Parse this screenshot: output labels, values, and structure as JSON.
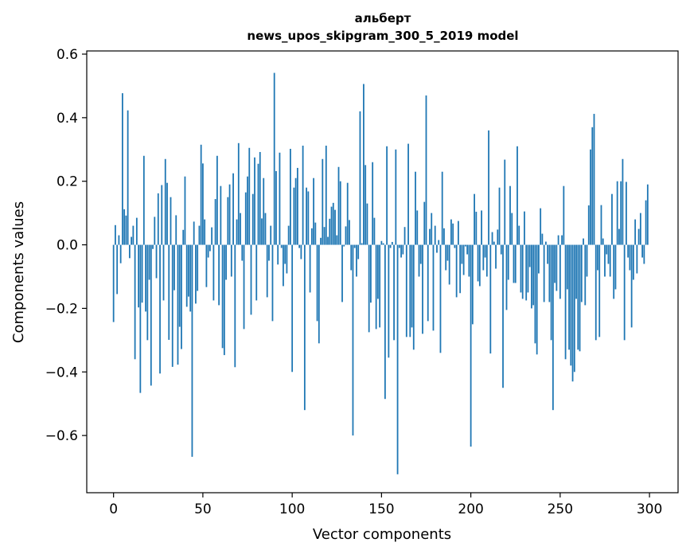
{
  "chart_data": {
    "type": "bar",
    "title": "альберт",
    "subtitle": "news_upos_skipgram_300_5_2019 model",
    "xlabel": "Vector components",
    "ylabel": "Components values",
    "xlim": [
      -15,
      316
    ],
    "ylim": [
      -0.78,
      0.61
    ],
    "xticks": [
      0,
      50,
      100,
      150,
      200,
      250,
      300
    ],
    "xtick_labels": [
      "0",
      "50",
      "100",
      "150",
      "200",
      "250",
      "300"
    ],
    "yticks": [
      0.6,
      0.4,
      0.2,
      0.0,
      -0.2,
      -0.4,
      -0.6
    ],
    "ytick_labels": [
      "0.6",
      "0.4",
      "0.2",
      "0.0",
      "−0.2",
      "−0.4",
      "−0.6"
    ],
    "grid": false,
    "bar_color": "#1f77b4",
    "values": [
      -0.243,
      0.062,
      -0.155,
      0.03,
      -0.058,
      0.477,
      0.112,
      0.092,
      0.423,
      -0.042,
      0.025,
      0.06,
      -0.36,
      0.085,
      -0.197,
      -0.466,
      -0.182,
      0.28,
      -0.21,
      -0.3,
      -0.11,
      -0.443,
      -0.013,
      0.088,
      -0.105,
      0.162,
      -0.405,
      0.188,
      -0.175,
      0.27,
      0.195,
      -0.299,
      0.15,
      -0.384,
      -0.143,
      0.093,
      -0.377,
      -0.258,
      -0.328,
      0.047,
      0.215,
      -0.195,
      -0.163,
      -0.21,
      -0.667,
      0.073,
      -0.185,
      -0.145,
      0.06,
      0.315,
      0.256,
      0.08,
      -0.133,
      -0.04,
      -0.02,
      0.055,
      -0.175,
      0.144,
      0.28,
      -0.19,
      0.185,
      -0.325,
      -0.347,
      -0.11,
      0.15,
      0.19,
      -0.1,
      0.225,
      -0.385,
      0.08,
      0.32,
      0.1,
      -0.05,
      -0.265,
      0.165,
      0.215,
      0.305,
      -0.22,
      0.16,
      0.275,
      -0.175,
      0.255,
      0.292,
      0.083,
      0.21,
      0.1,
      -0.165,
      -0.05,
      0.06,
      -0.24,
      0.541,
      0.232,
      -0.062,
      0.29,
      -0.01,
      -0.13,
      -0.06,
      -0.09,
      0.06,
      0.302,
      -0.4,
      0.18,
      0.21,
      0.242,
      -0.01,
      -0.045,
      0.312,
      -0.52,
      0.18,
      0.168,
      -0.15,
      0.052,
      0.21,
      0.07,
      -0.24,
      -0.31,
      0.022,
      0.27,
      0.056,
      0.312,
      0.025,
      0.082,
      0.12,
      0.132,
      0.11,
      0.03,
      0.245,
      0.2,
      -0.18,
      -0.005,
      0.058,
      0.195,
      0.078,
      -0.08,
      -0.6,
      -0.01,
      -0.1,
      -0.045,
      0.42,
      0.005,
      0.506,
      0.251,
      0.13,
      -0.275,
      -0.182,
      0.26,
      0.085,
      -0.265,
      -0.17,
      -0.26,
      0.012,
      0.005,
      -0.485,
      0.31,
      -0.355,
      -0.01,
      0.009,
      -0.3,
      0.3,
      -0.722,
      -0.01,
      -0.04,
      -0.03,
      0.056,
      -0.29,
      0.318,
      -0.29,
      -0.26,
      -0.33,
      0.23,
      0.108,
      -0.1,
      -0.06,
      -0.28,
      0.135,
      0.47,
      -0.24,
      0.05,
      0.1,
      -0.27,
      0.06,
      -0.025,
      0.015,
      -0.34,
      0.23,
      0.052,
      -0.08,
      -0.05,
      -0.125,
      0.08,
      0.067,
      -0.01,
      -0.165,
      0.075,
      -0.152,
      -0.06,
      -0.095,
      -0.005,
      -0.03,
      -0.1,
      -0.635,
      -0.25,
      0.16,
      0.104,
      -0.115,
      -0.13,
      0.108,
      -0.08,
      -0.04,
      -0.1,
      0.36,
      -0.342,
      0.04,
      0.01,
      -0.075,
      0.048,
      0.18,
      -0.03,
      -0.45,
      0.268,
      -0.205,
      -0.11,
      0.185,
      0.1,
      -0.12,
      -0.12,
      0.31,
      0.06,
      -0.15,
      -0.17,
      0.105,
      -0.175,
      -0.15,
      -0.07,
      -0.2,
      -0.19,
      -0.31,
      -0.345,
      -0.09,
      0.115,
      0.035,
      -0.18,
      0.01,
      -0.06,
      -0.18,
      -0.3,
      -0.52,
      -0.12,
      -0.145,
      0.03,
      -0.17,
      0.03,
      0.185,
      -0.36,
      -0.14,
      -0.33,
      -0.38,
      -0.43,
      -0.4,
      -0.17,
      -0.33,
      -0.335,
      -0.18,
      0.02,
      -0.19,
      -0.1,
      0.124,
      0.3,
      0.37,
      0.412,
      -0.3,
      -0.08,
      -0.29,
      0.125,
      0.02,
      -0.1,
      -0.03,
      -0.06,
      -0.1,
      0.16,
      -0.17,
      -0.14,
      0.2,
      0.05,
      0.2,
      0.27,
      -0.3,
      0.198,
      -0.04,
      -0.08,
      -0.26,
      -0.11,
      0.08,
      -0.09,
      0.05,
      0.1,
      -0.04,
      -0.06,
      0.14,
      0.19
    ]
  }
}
